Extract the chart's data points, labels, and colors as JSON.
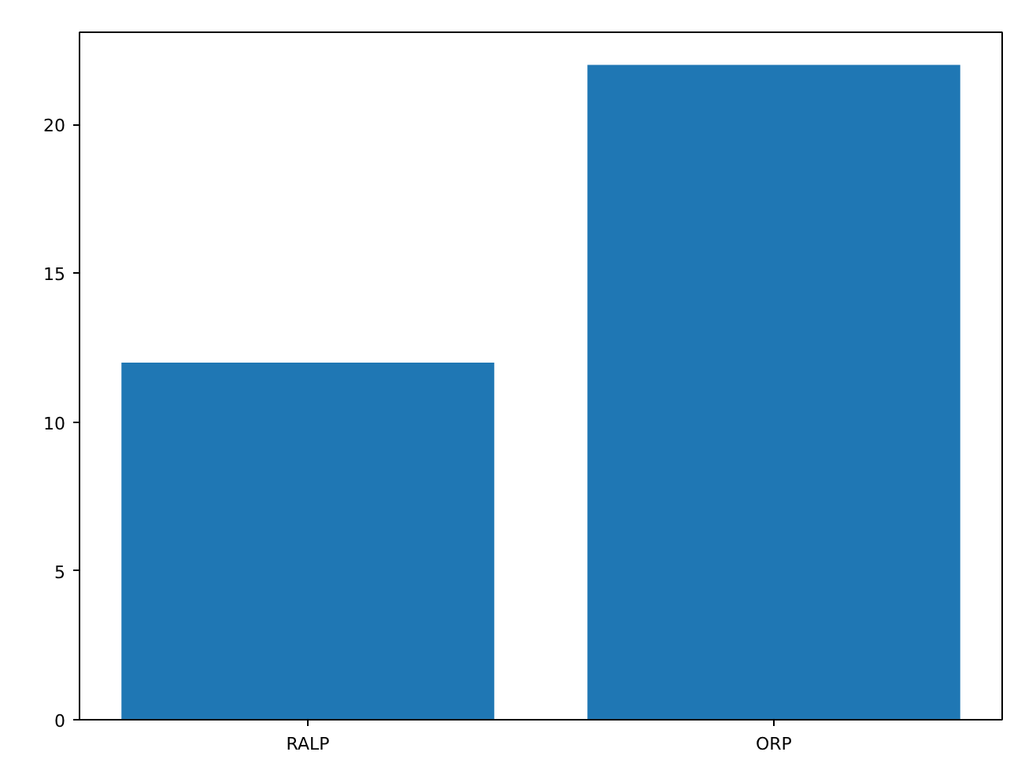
{
  "chart_data": {
    "type": "bar",
    "categories": [
      "RALP",
      "ORP"
    ],
    "values": [
      12,
      22
    ],
    "color": "#1f77b4",
    "ylim": [
      0,
      23.1
    ],
    "yticks": [
      0,
      5,
      10,
      15,
      20
    ],
    "grid": false
  }
}
